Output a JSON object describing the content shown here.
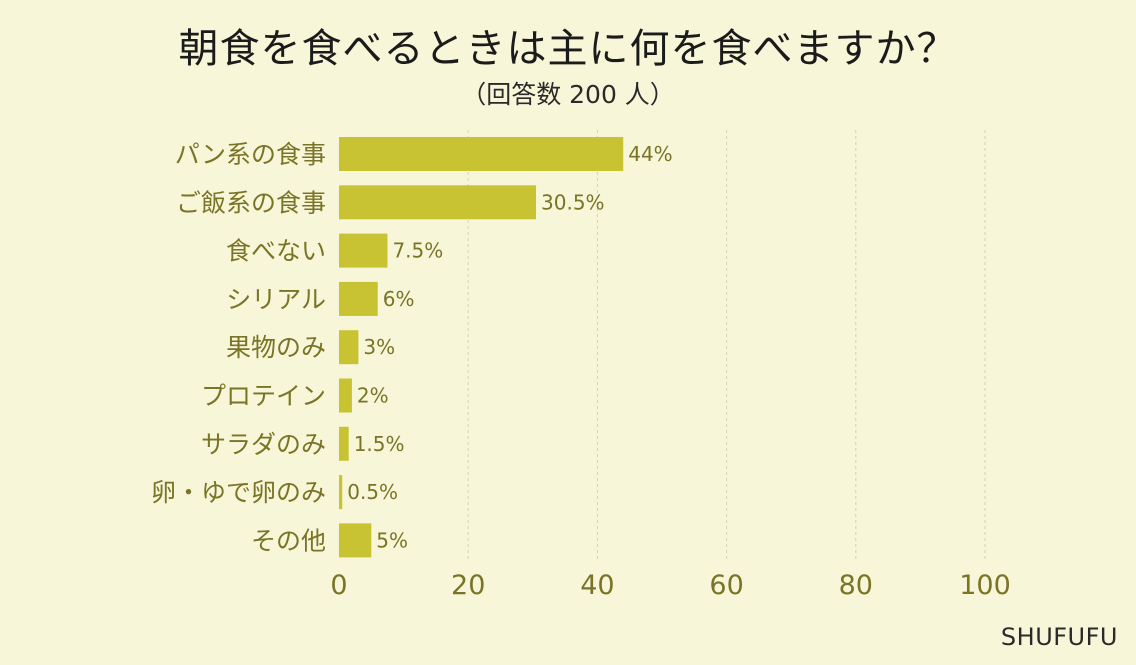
{
  "title": "朝食を食べるときは主に何を食べますか？",
  "subtitle": "（回答数 200 人）",
  "brand": "SHUFUFU",
  "colors": {
    "background": "#f7f6d8",
    "bar": "#c8c332",
    "label": "#7a7426",
    "grid": "#d2d1bd"
  },
  "chart_data": {
    "type": "bar",
    "orientation": "horizontal",
    "categories": [
      "パン系の食事",
      "ご飯系の食事",
      "食べない",
      "シリアル",
      "果物のみ",
      "プロテイン",
      "サラダのみ",
      "卵・ゆで卵のみ",
      "その他"
    ],
    "values": [
      44,
      30.5,
      7.5,
      6,
      3,
      2,
      1.5,
      0.5,
      5
    ],
    "value_labels": [
      "44%",
      "30.5%",
      "7.5%",
      "6%",
      "3%",
      "2%",
      "1.5%",
      "0.5%",
      "5%"
    ],
    "xlim": [
      0,
      100
    ],
    "xticks": [
      0,
      20,
      40,
      60,
      80,
      100
    ],
    "xtick_labels": [
      "0",
      "20",
      "40",
      "60",
      "80",
      "100"
    ],
    "grid": true,
    "legend": "none"
  }
}
